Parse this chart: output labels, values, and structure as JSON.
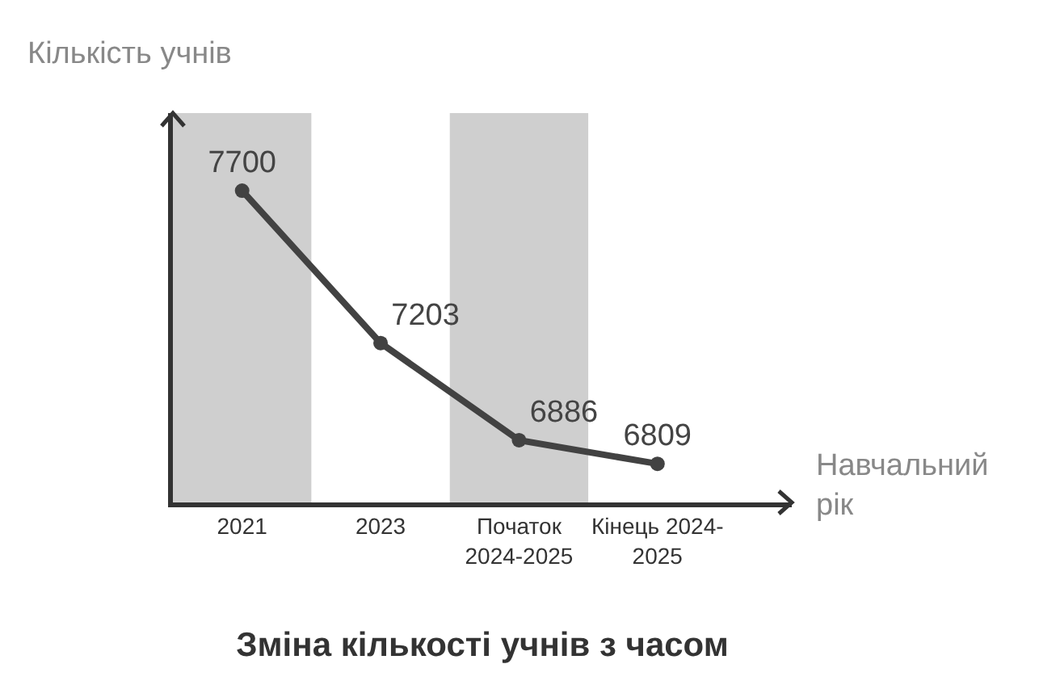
{
  "chart_data": {
    "type": "line",
    "title": "Зміна кількості учнів з часом",
    "xlabel": "Навчальний\nрік",
    "ylabel": "Кількість учнів",
    "categories": [
      "2021",
      "2023",
      "Початок\n2024-2025",
      "Кінець 2024-\n2025"
    ],
    "series": [
      {
        "color": "#424242",
        "values": [
          7700,
          7203,
          6886,
          6809
        ]
      }
    ],
    "ylim": [
      6683,
      7953
    ],
    "data_labels": true,
    "marker": "circle",
    "line_style": "solid",
    "grid": false,
    "legend": false,
    "bands": [
      {
        "axis": "x",
        "from": "2021",
        "to": "2021",
        "color": "#cfcfcf"
      },
      {
        "axis": "x",
        "from": "Початок\n2024-2025",
        "to": "Початок\n2024-2025",
        "color": "#cfcfcf"
      }
    ]
  }
}
